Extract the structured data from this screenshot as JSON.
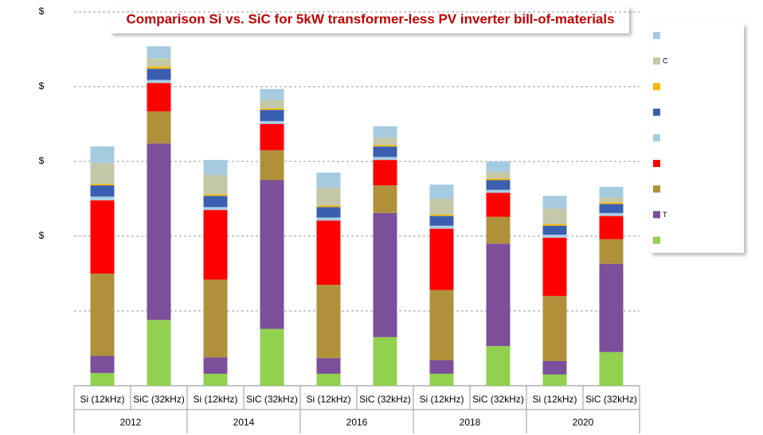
{
  "chart_data": {
    "type": "stacked-bar",
    "title": "Comparison Si vs. SiC for 5kW transformer-less PV inverter bill-of-materials",
    "categories": [
      "Si (12kHz)",
      "SiC (32kHz)",
      "Si (12kHz)",
      "SiC (32kHz)",
      "Si (12kHz)",
      "SiC (32kHz)",
      "Si (12kHz)",
      "SiC (32kHz)",
      "Si (12kHz)",
      "SiC (32kHz)"
    ],
    "groups": [
      "2012",
      "2014",
      "2016",
      "2018",
      "2020"
    ],
    "ylim": [
      0,
      5
    ],
    "yticks": [
      {
        "value": 1,
        "label": null
      },
      {
        "value": 2,
        "label": "$"
      },
      {
        "value": 3,
        "label": "$"
      },
      {
        "value": 4,
        "label": "$"
      },
      {
        "value": 5,
        "label": "$"
      }
    ],
    "grid": true,
    "series": [
      {
        "name": null,
        "color": "#92d050",
        "values": [
          0.17,
          0.88,
          0.16,
          0.76,
          0.16,
          0.65,
          0.16,
          0.53,
          0.15,
          0.45
        ]
      },
      {
        "name": "T",
        "color": "#7b4f9a",
        "values": [
          0.23,
          2.36,
          0.22,
          1.99,
          0.21,
          1.66,
          0.18,
          1.37,
          0.18,
          1.18
        ]
      },
      {
        "name": null,
        "color": "#b0913a",
        "values": [
          1.1,
          0.43,
          1.04,
          0.4,
          0.98,
          0.37,
          0.94,
          0.36,
          0.87,
          0.33
        ]
      },
      {
        "name": null,
        "color": "#ff0000",
        "values": [
          0.98,
          0.38,
          0.93,
          0.35,
          0.86,
          0.34,
          0.82,
          0.32,
          0.78,
          0.31
        ]
      },
      {
        "name": null,
        "color": "#a9cde0",
        "values": [
          0.05,
          0.04,
          0.04,
          0.04,
          0.04,
          0.04,
          0.04,
          0.04,
          0.04,
          0.04
        ]
      },
      {
        "name": null,
        "color": "#3a5fb0",
        "values": [
          0.15,
          0.15,
          0.15,
          0.15,
          0.14,
          0.14,
          0.13,
          0.13,
          0.12,
          0.12
        ]
      },
      {
        "name": null,
        "color": "#f5b800",
        "values": [
          0.02,
          0.03,
          0.02,
          0.02,
          0.02,
          0.02,
          0.02,
          0.02,
          0.02,
          0.02
        ]
      },
      {
        "name": "C",
        "color": "#c4c8a8",
        "values": [
          0.28,
          0.11,
          0.26,
          0.11,
          0.24,
          0.1,
          0.21,
          0.09,
          0.21,
          0.07
        ]
      },
      {
        "name": null,
        "color": "#a6cbe0",
        "values": [
          0.22,
          0.16,
          0.2,
          0.15,
          0.2,
          0.15,
          0.19,
          0.14,
          0.17,
          0.14
        ]
      }
    ]
  }
}
